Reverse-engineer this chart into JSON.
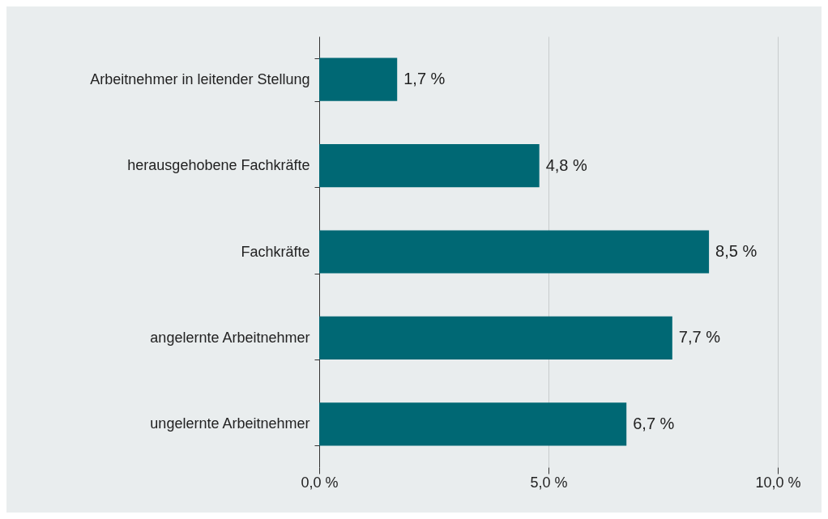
{
  "chart_data": {
    "type": "bar",
    "orientation": "horizontal",
    "categories": [
      "Arbeitnehmer in leitender Stellung",
      "herausgehobene Fachkräfte",
      "Fachkräfte",
      "angelernte Arbeitnehmer",
      "ungelernte Arbeitnehmer"
    ],
    "values": [
      1.7,
      4.8,
      8.5,
      7.7,
      6.7
    ],
    "value_labels": [
      "1,7 %",
      "4,8 %",
      "8,5 %",
      "7,7 %",
      "6,7 %"
    ],
    "color": "#006874",
    "xlim": [
      0,
      10
    ],
    "xticks": [
      {
        "value": 0,
        "label": "0,0 %"
      },
      {
        "value": 5,
        "label": "5,0 %"
      },
      {
        "value": 10,
        "label": "10,0 %"
      }
    ],
    "grid": "x"
  }
}
